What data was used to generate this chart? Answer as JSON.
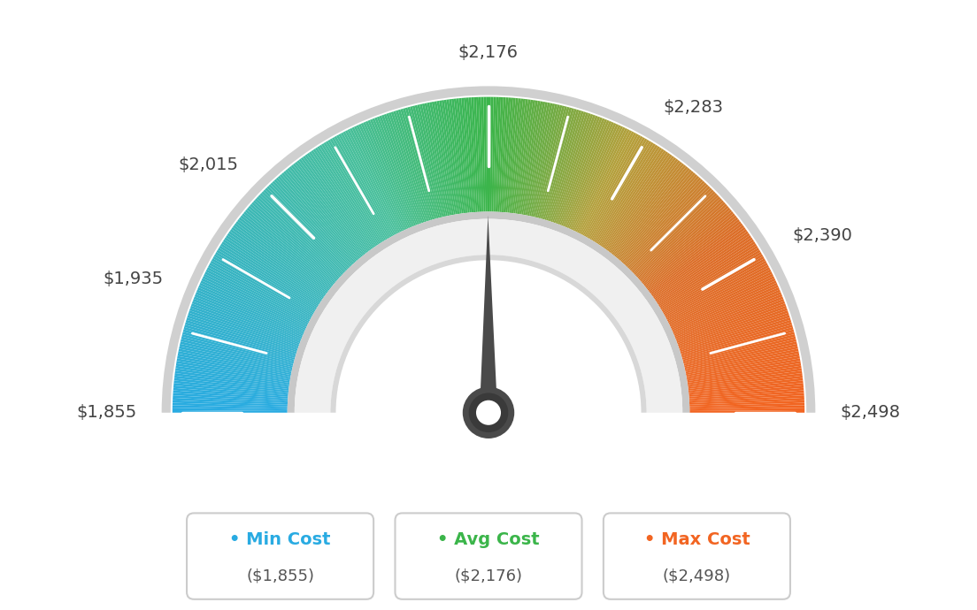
{
  "min_val": 1855,
  "max_val": 2498,
  "avg_val": 2176,
  "label_values": [
    1855,
    1935,
    2015,
    2176,
    2283,
    2390,
    2498
  ],
  "legend": [
    {
      "label": "Min Cost",
      "value": "($1,855)",
      "color": "#29ABE2"
    },
    {
      "label": "Avg Cost",
      "value": "($2,176)",
      "color": "#3BB54A"
    },
    {
      "label": "Max Cost",
      "value": "($2,498)",
      "color": "#F26522"
    }
  ],
  "bg_color": "#ffffff",
  "color_stops": [
    [
      0.0,
      [
        41,
        171,
        226
      ]
    ],
    [
      0.35,
      [
        72,
        191,
        155
      ]
    ],
    [
      0.5,
      [
        59,
        181,
        74
      ]
    ],
    [
      0.65,
      [
        180,
        160,
        60
      ]
    ],
    [
      0.8,
      [
        220,
        110,
        40
      ]
    ],
    [
      1.0,
      [
        242,
        101,
        34
      ]
    ]
  ]
}
